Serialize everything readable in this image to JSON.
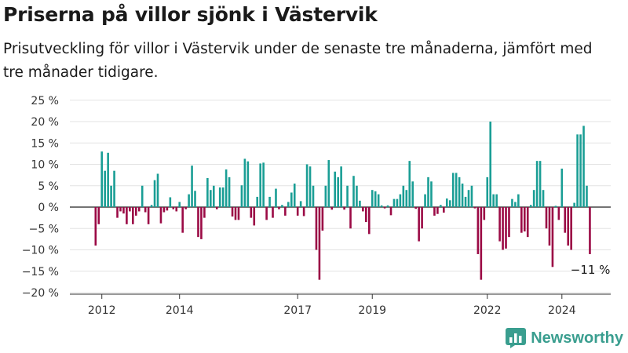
{
  "chart_data": {
    "type": "bar",
    "title": "Priserna på villor sjönk i Västervik",
    "subtitle": "Prisutveckling för villor i Västervik under de senaste tre månaderna, jämfört med tre månader tidigare.",
    "ylim": [
      -20,
      25
    ],
    "yticks": [
      25,
      20,
      15,
      10,
      5,
      0,
      -5,
      -10,
      -15,
      -20
    ],
    "ytick_labels": [
      "25 %",
      "20 %",
      "15 %",
      "10 %",
      "5 %",
      "0 %",
      "−5 %",
      "−10 %",
      "−15 %",
      "−20 %"
    ],
    "xticks": [
      {
        "label": "2012",
        "index": 2
      },
      {
        "label": "2014",
        "index": 27
      },
      {
        "label": "2017",
        "index": 65
      },
      {
        "label": "2019",
        "index": 89
      },
      {
        "label": "2022",
        "index": 126
      },
      {
        "label": "2024",
        "index": 150
      }
    ],
    "positive_color": "#1a9e95",
    "negative_color": "#9b0a45",
    "annotation": "−11 %",
    "values": [
      -9,
      -4,
      13,
      8.5,
      12.7,
      5,
      8.5,
      -2.5,
      -1,
      -1.5,
      -4,
      -1,
      -4,
      -2,
      -1,
      5,
      -1.2,
      -4,
      0.5,
      6.3,
      7.8,
      -3.8,
      -1.2,
      -0.8,
      2.3,
      -0.5,
      -1,
      1.2,
      -6,
      -0.5,
      3,
      9.7,
      3.8,
      -7,
      -7.5,
      -2.5,
      6.8,
      4,
      5,
      -0.5,
      4.6,
      4.6,
      8.8,
      7,
      -2.2,
      -3,
      -3,
      5.1,
      11.3,
      10.7,
      -2.5,
      -4.3,
      2.4,
      10.2,
      10.4,
      -3,
      2.4,
      -2.5,
      4.3,
      -0.5,
      0.5,
      -2,
      1.2,
      3.4,
      5.5,
      -2,
      1.4,
      -2.1,
      10,
      9.5,
      5,
      -10,
      -17,
      -5.5,
      5,
      11,
      -0.6,
      8.3,
      7,
      9.5,
      -0.6,
      5,
      -5,
      7.3,
      5,
      1.5,
      -1,
      -3.5,
      -6.3,
      4,
      3.7,
      3,
      0.4,
      -0.3,
      0.4,
      -1.9,
      1.9,
      1.9,
      3,
      5,
      4,
      10.8,
      6,
      -0.4,
      -8,
      -5,
      3,
      7,
      6,
      -2,
      -1.6,
      0.5,
      -1.3,
      2,
      1.6,
      8,
      8,
      7,
      5.5,
      2.4,
      4,
      5,
      -0.3,
      -11,
      -17,
      -3,
      7,
      20,
      3,
      3,
      -8,
      -10,
      -9.7,
      -7,
      1.9,
      1.2,
      3,
      -6,
      -5.7,
      -7,
      0.5,
      4,
      10.8,
      10.8,
      4,
      -5,
      -9,
      -14,
      0.3,
      -3,
      9,
      -6,
      -9,
      -10,
      1,
      17,
      17,
      19,
      5,
      -11
    ]
  },
  "branding": {
    "name": "Newsworthy",
    "icon": "bar-chart-icon",
    "color": "#3a9e8f"
  }
}
